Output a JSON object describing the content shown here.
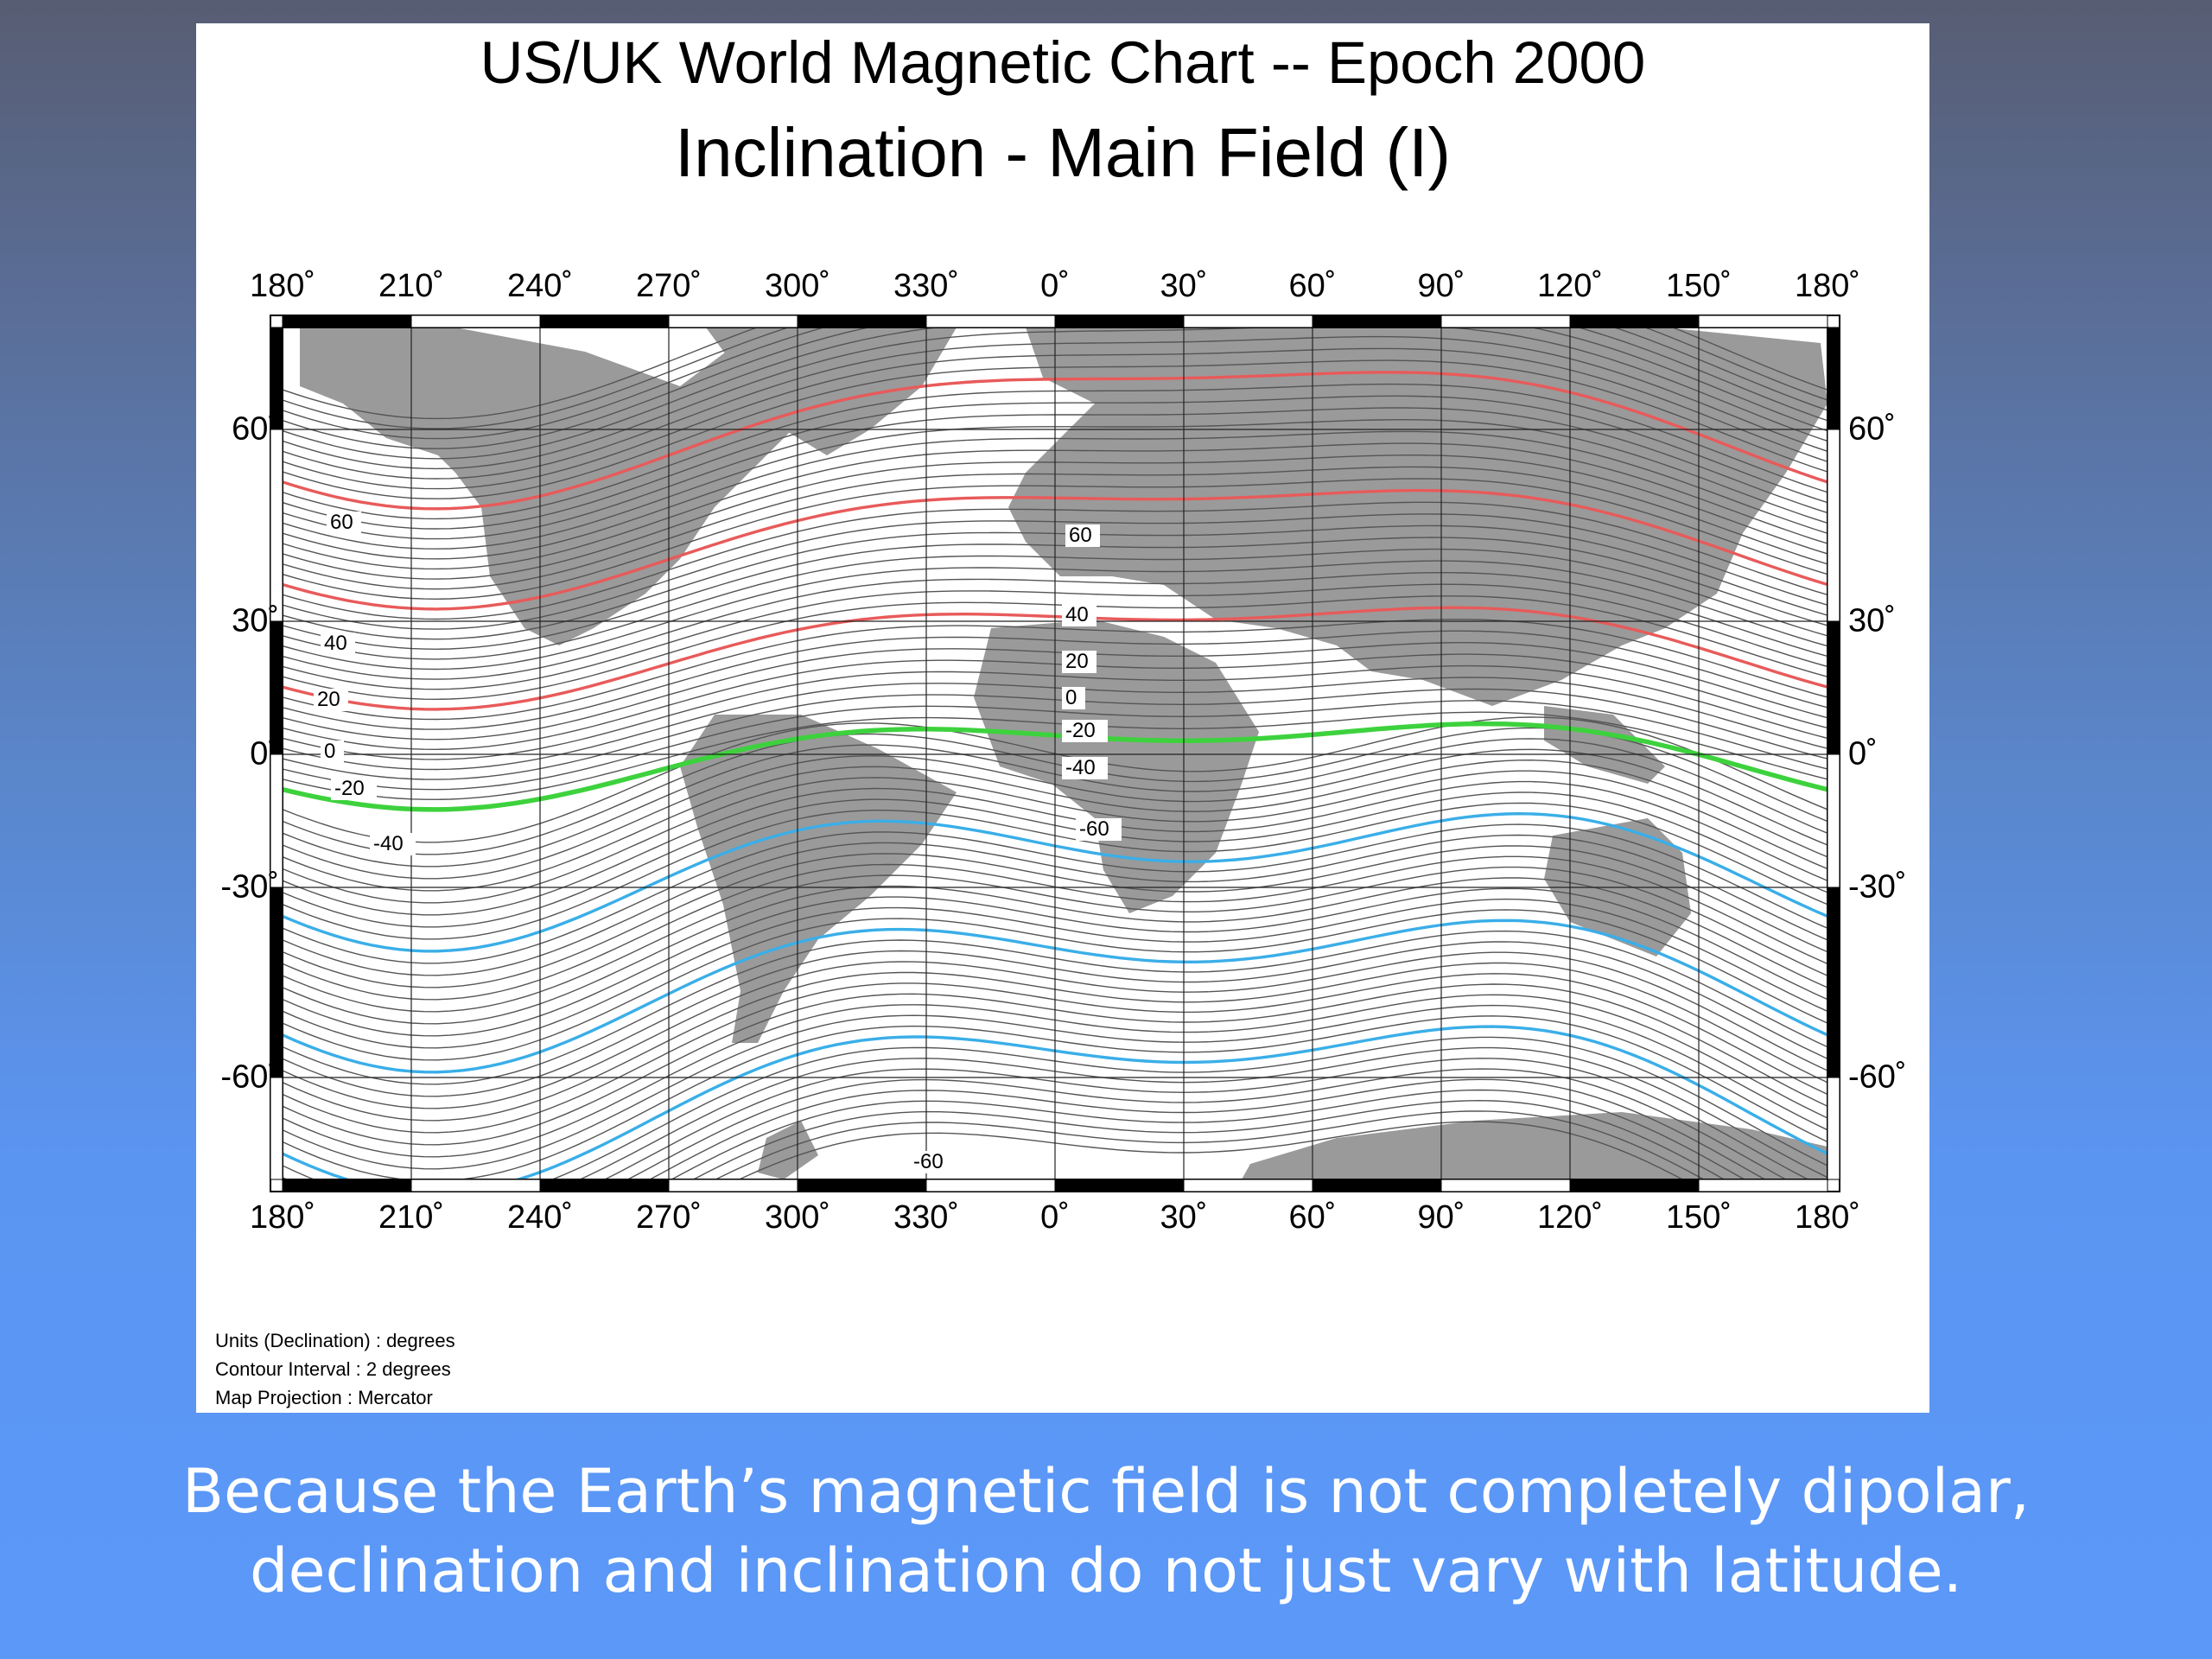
{
  "slide": {
    "caption_lines": [
      "Because the Earth’s magnetic field is not completely dipolar,",
      "declination and inclination do not just vary with latitude."
    ]
  },
  "map": {
    "title": "US/UK World Magnetic Chart  --  Epoch 2000",
    "subtitle": "Inclination - Main Field (I)",
    "projection": "Mercator",
    "lon_labels": [
      "180˚",
      "210˚",
      "240˚",
      "270˚",
      "300˚",
      "330˚",
      "0˚",
      "30˚",
      "60˚",
      "90˚",
      "120˚",
      "150˚",
      "180˚"
    ],
    "lat_labels": [
      {
        "lat": 60,
        "left": "60˚",
        "right": "60˚"
      },
      {
        "lat": 30,
        "left": "30˚",
        "right": "30˚"
      },
      {
        "lat": 0,
        "left": "0˚",
        "right": "0˚"
      },
      {
        "lat": -30,
        "left": "-30˚",
        "right": "-30˚"
      },
      {
        "lat": -60,
        "left": "-60˚",
        "right": "-60˚"
      }
    ],
    "notes": [
      "Units (Declination) : degrees",
      "Contour Interval : 2 degrees",
      "Map Projection : Mercator"
    ],
    "contour_labels": [
      "60",
      "60",
      "40",
      "40",
      "20",
      "20",
      "0",
      "0",
      "-20",
      "-20",
      "-40",
      "-40",
      "-60",
      "-60"
    ],
    "colors": {
      "positive_major": "#e85a5a",
      "zero_line": "#3dd23d",
      "negative_major": "#3aaee8",
      "minor": "#555555",
      "land": "#9a9a9a"
    }
  }
}
